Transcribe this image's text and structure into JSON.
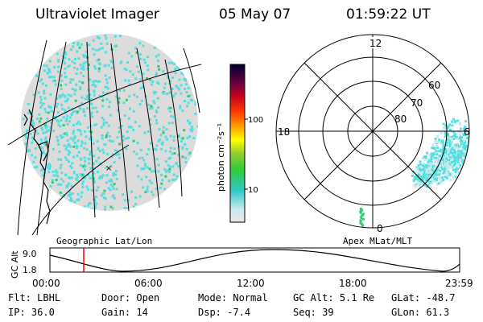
{
  "header": {
    "instrument": "Ultraviolet Imager",
    "date": "05 May 07",
    "time": "01:59:22 UT"
  },
  "colorbar": {
    "unit_label": "photon cm⁻²s⁻¹",
    "tick_100": "100",
    "tick_10": "10"
  },
  "polar_plot": {
    "mlt_labels": [
      "12",
      "18",
      "6",
      "0"
    ],
    "mlat_labels": [
      "60",
      "70",
      "80"
    ]
  },
  "panel_labels": {
    "left": "Geographic Lat/Lon",
    "right": "Apex MLat/MLT"
  },
  "altitude_plot": {
    "ylabel": "GC Alt",
    "yticks": [
      "9.0",
      "1.8"
    ],
    "xticks": [
      "00:00",
      "06:00",
      "12:00",
      "18:00",
      "23:59"
    ],
    "marker_color": "#ff0000"
  },
  "info": {
    "row1": [
      {
        "label": "Flt:",
        "value": "LBHL"
      },
      {
        "label": "Door:",
        "value": "Open"
      },
      {
        "label": "Mode:",
        "value": "Normal"
      },
      {
        "label": "GC Alt:",
        "value": "5.1 Re"
      },
      {
        "label": "GLat:",
        "value": "-48.7"
      }
    ],
    "row2": [
      {
        "label": "IP:",
        "value": "36.0"
      },
      {
        "label": "Gain:",
        "value": "14"
      },
      {
        "label": "Dsp:",
        "value": "-7.4"
      },
      {
        "label": "Seq:",
        "value": "39"
      },
      {
        "label": "GLon:",
        "value": "61.3"
      }
    ]
  },
  "colors": {
    "emission_cyan": "#55dede",
    "emission_grey": "#d8d8d8",
    "emission_green": "#2ecc71"
  }
}
